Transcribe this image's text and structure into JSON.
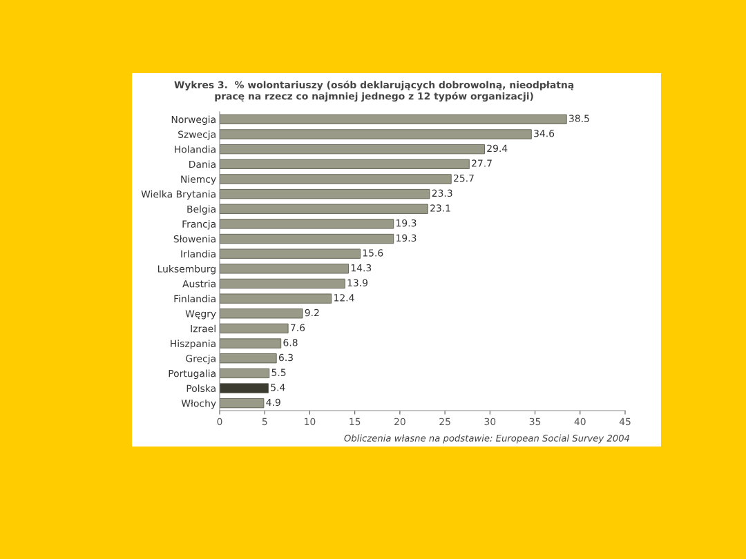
{
  "chart_data": {
    "type": "bar",
    "orientation": "horizontal",
    "title": "Wykres 3.  % wolontariuszy (osób deklarujących dobrowolną, nieodpłatną\npracę na rzecz co najmniej jednego z 12 typów organizacji)",
    "categories": [
      "Norwegia",
      "Szwecja",
      "Holandia",
      "Dania",
      "Niemcy",
      "Wielka Brytania",
      "Belgia",
      "Francja",
      "Słowenia",
      "Irlandia",
      "Luksemburg",
      "Austria",
      "Finlandia",
      "Węgry",
      "Izrael",
      "Hiszpania",
      "Grecja",
      "Portugalia",
      "Polska",
      "Włochy"
    ],
    "values": [
      38.5,
      34.6,
      29.4,
      27.7,
      25.7,
      23.3,
      23.1,
      19.3,
      19.3,
      15.6,
      14.3,
      13.9,
      12.4,
      9.2,
      7.6,
      6.8,
      6.3,
      5.5,
      5.4,
      4.9
    ],
    "colors": [
      "#9a9a88",
      "#9a9a88",
      "#9a9a88",
      "#9a9a88",
      "#9a9a88",
      "#9a9a88",
      "#9a9a88",
      "#9a9a88",
      "#9a9a88",
      "#9a9a88",
      "#9a9a88",
      "#9a9a88",
      "#9a9a88",
      "#9a9a88",
      "#9a9a88",
      "#9a9a88",
      "#9a9a88",
      "#9a9a88",
      "#3c3c30",
      "#9a9a88"
    ],
    "xlim": [
      0,
      45
    ],
    "xticks": [
      0,
      5,
      10,
      15,
      20,
      25,
      30,
      35,
      40,
      45
    ],
    "data_labels": true,
    "grid": false,
    "annotations": [
      "Obliczenia własne na podstawie: European Social Survey 2004"
    ]
  }
}
